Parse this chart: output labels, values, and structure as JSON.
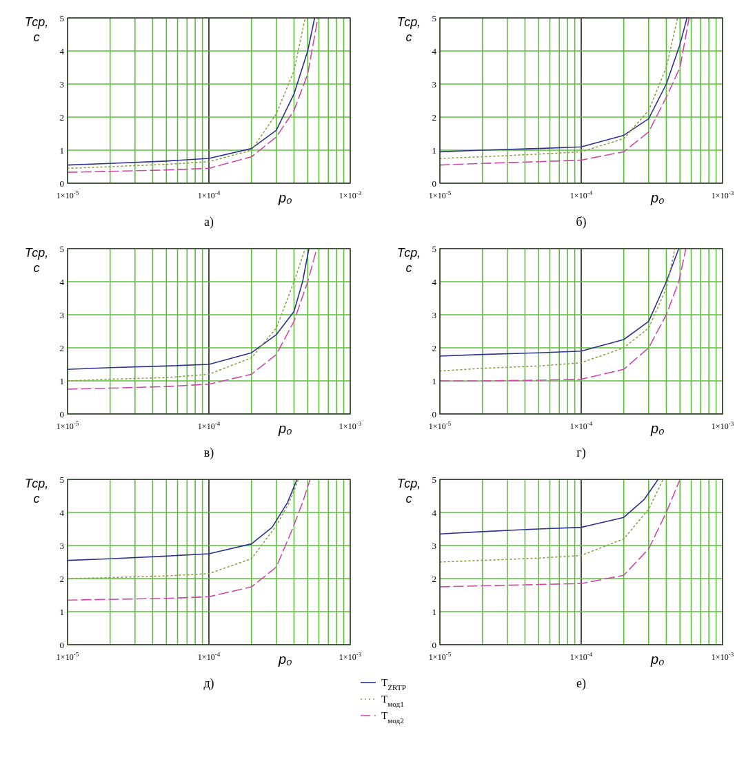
{
  "chart_data": [
    {
      "type": "line",
      "title": "а)",
      "xlabel": "p₀",
      "ylabel": "Тср, с",
      "log": "x",
      "grid": true,
      "ref_lines": [
        {
          "axis": "x",
          "value": 0.0001,
          "color": "#333333"
        }
      ],
      "xlim": [
        1e-05,
        0.001
      ],
      "ylim": [
        0,
        5
      ],
      "yticks": [
        0,
        1,
        2,
        3,
        4,
        5
      ],
      "xticks": [
        {
          "value": 1e-05,
          "label": "1×10$^{-5}$"
        },
        {
          "value": 2e-05,
          "label": null
        },
        {
          "value": 3e-05,
          "label": null
        },
        {
          "value": 4e-05,
          "label": null
        },
        {
          "value": 5e-05,
          "label": null
        },
        {
          "value": 6e-05,
          "label": null
        },
        {
          "value": 7e-05,
          "label": null
        },
        {
          "value": 8e-05,
          "label": null
        },
        {
          "value": 9e-05,
          "label": null
        },
        {
          "value": 0.0001,
          "label": "1×10$^{-4}$"
        },
        {
          "value": 0.0002,
          "label": null
        },
        {
          "value": 0.0003,
          "label": null
        },
        {
          "value": 0.0004,
          "label": null
        },
        {
          "value": 0.0005,
          "label": null
        },
        {
          "value": 0.0006,
          "label": null
        },
        {
          "value": 0.0007,
          "label": null
        },
        {
          "value": 0.0008,
          "label": null
        },
        {
          "value": 0.0009,
          "label": null
        },
        {
          "value": 0.001,
          "label": "1×10$^{-3}$"
        }
      ],
      "series": [
        {
          "color": "#2e3192",
          "line_style": "solid",
          "x": [
            1e-05,
            2e-05,
            5e-05,
            0.0001,
            0.0002,
            0.0003,
            0.0004,
            0.0005,
            0.00056
          ],
          "values": [
            0.55,
            0.6,
            0.67,
            0.75,
            1.05,
            1.6,
            2.7,
            4.0,
            5
          ]
        },
        {
          "color": "#8fa04a",
          "line_style": "dotted",
          "x": [
            1e-05,
            2e-05,
            5e-05,
            0.0001,
            0.0002,
            0.0003,
            0.0004,
            0.00048
          ],
          "values": [
            0.45,
            0.5,
            0.57,
            0.65,
            1.0,
            2.1,
            3.4,
            5
          ]
        },
        {
          "color": "#cc4aa8",
          "line_style": "dashed",
          "x": [
            1e-05,
            2e-05,
            5e-05,
            0.0001,
            0.0002,
            0.0003,
            0.0004,
            0.0005,
            0.00059
          ],
          "values": [
            0.33,
            0.36,
            0.4,
            0.45,
            0.8,
            1.4,
            2.2,
            3.3,
            5
          ]
        }
      ]
    },
    {
      "type": "line",
      "title": "б)",
      "xlabel": "p₀",
      "ylabel": "Тср, с",
      "log": "x",
      "grid": true,
      "ref_lines": [
        {
          "axis": "x",
          "value": 0.0001,
          "color": "#333333"
        }
      ],
      "xlim": [
        1e-05,
        0.001
      ],
      "ylim": [
        0,
        5
      ],
      "yticks": [
        0,
        1,
        2,
        3,
        4,
        5
      ],
      "xticks": [
        {
          "value": 1e-05,
          "label": "1×10$^{-5}$"
        },
        {
          "value": 2e-05,
          "label": null
        },
        {
          "value": 3e-05,
          "label": null
        },
        {
          "value": 4e-05,
          "label": null
        },
        {
          "value": 5e-05,
          "label": null
        },
        {
          "value": 6e-05,
          "label": null
        },
        {
          "value": 7e-05,
          "label": null
        },
        {
          "value": 8e-05,
          "label": null
        },
        {
          "value": 9e-05,
          "label": null
        },
        {
          "value": 0.0001,
          "label": "1×10$^{-4}$"
        },
        {
          "value": 0.0002,
          "label": null
        },
        {
          "value": 0.0003,
          "label": null
        },
        {
          "value": 0.0004,
          "label": null
        },
        {
          "value": 0.0005,
          "label": null
        },
        {
          "value": 0.0006,
          "label": null
        },
        {
          "value": 0.0007,
          "label": null
        },
        {
          "value": 0.0008,
          "label": null
        },
        {
          "value": 0.0009,
          "label": null
        },
        {
          "value": 0.001,
          "label": "1×10$^{-3}$"
        }
      ],
      "series": [
        {
          "color": "#2e3192",
          "line_style": "solid",
          "x": [
            1e-05,
            2e-05,
            5e-05,
            0.0001,
            0.0002,
            0.0003,
            0.0004,
            0.0005,
            0.00056
          ],
          "values": [
            0.95,
            1.0,
            1.05,
            1.1,
            1.45,
            1.95,
            3.0,
            4.2,
            5
          ]
        },
        {
          "color": "#8fa04a",
          "line_style": "dotted",
          "x": [
            1e-05,
            2e-05,
            5e-05,
            0.0001,
            0.0002,
            0.0003,
            0.0004,
            0.00048
          ],
          "values": [
            0.75,
            0.8,
            0.88,
            0.95,
            1.35,
            2.2,
            3.5,
            5
          ]
        },
        {
          "color": "#cc4aa8",
          "line_style": "dashed",
          "x": [
            1e-05,
            2e-05,
            5e-05,
            0.0001,
            0.0002,
            0.0003,
            0.0004,
            0.0005,
            0.00058
          ],
          "values": [
            0.55,
            0.6,
            0.65,
            0.7,
            0.95,
            1.55,
            2.6,
            3.5,
            5
          ]
        }
      ]
    },
    {
      "type": "line",
      "title": "в)",
      "xlabel": "p₀",
      "ylabel": "Тср, с",
      "log": "x",
      "grid": true,
      "ref_lines": [
        {
          "axis": "x",
          "value": 0.0001,
          "color": "#333333"
        }
      ],
      "xlim": [
        1e-05,
        0.001
      ],
      "ylim": [
        0,
        5
      ],
      "yticks": [
        0,
        1,
        2,
        3,
        4,
        5
      ],
      "xticks": [
        {
          "value": 1e-05,
          "label": "1×10$^{-5}$"
        },
        {
          "value": 2e-05,
          "label": null
        },
        {
          "value": 3e-05,
          "label": null
        },
        {
          "value": 4e-05,
          "label": null
        },
        {
          "value": 5e-05,
          "label": null
        },
        {
          "value": 6e-05,
          "label": null
        },
        {
          "value": 7e-05,
          "label": null
        },
        {
          "value": 8e-05,
          "label": null
        },
        {
          "value": 9e-05,
          "label": null
        },
        {
          "value": 0.0001,
          "label": "1×10$^{-4}$"
        },
        {
          "value": 0.0002,
          "label": null
        },
        {
          "value": 0.0003,
          "label": null
        },
        {
          "value": 0.0004,
          "label": null
        },
        {
          "value": 0.0005,
          "label": null
        },
        {
          "value": 0.0006,
          "label": null
        },
        {
          "value": 0.0007,
          "label": null
        },
        {
          "value": 0.0008,
          "label": null
        },
        {
          "value": 0.0009,
          "label": null
        },
        {
          "value": 0.001,
          "label": "1×10$^{-3}$"
        }
      ],
      "series": [
        {
          "color": "#2e3192",
          "line_style": "solid",
          "x": [
            1e-05,
            2e-05,
            5e-05,
            0.0001,
            0.0002,
            0.0003,
            0.0004,
            0.00046,
            0.00051
          ],
          "values": [
            1.35,
            1.4,
            1.45,
            1.5,
            1.85,
            2.4,
            3.1,
            4.0,
            5
          ]
        },
        {
          "color": "#8fa04a",
          "line_style": "dotted",
          "x": [
            1e-05,
            2e-05,
            5e-05,
            0.0001,
            0.0002,
            0.0003,
            0.0004,
            0.00048
          ],
          "values": [
            1.0,
            1.05,
            1.1,
            1.2,
            1.7,
            2.6,
            4.0,
            5
          ]
        },
        {
          "color": "#cc4aa8",
          "line_style": "dashed",
          "x": [
            1e-05,
            2e-05,
            5e-05,
            0.0001,
            0.0002,
            0.0003,
            0.0004,
            0.0005,
            0.00058
          ],
          "values": [
            0.75,
            0.78,
            0.83,
            0.9,
            1.2,
            1.8,
            2.8,
            4.0,
            5
          ]
        }
      ]
    },
    {
      "type": "line",
      "title": "г)",
      "xlabel": "p₀",
      "ylabel": "Тср, с",
      "log": "x",
      "grid": true,
      "ref_lines": [
        {
          "axis": "x",
          "value": 0.0001,
          "color": "#333333"
        }
      ],
      "xlim": [
        1e-05,
        0.001
      ],
      "ylim": [
        0,
        5
      ],
      "yticks": [
        0,
        1,
        2,
        3,
        4,
        5
      ],
      "xticks": [
        {
          "value": 1e-05,
          "label": "1×10$^{-5}$"
        },
        {
          "value": 2e-05,
          "label": null
        },
        {
          "value": 3e-05,
          "label": null
        },
        {
          "value": 4e-05,
          "label": null
        },
        {
          "value": 5e-05,
          "label": null
        },
        {
          "value": 6e-05,
          "label": null
        },
        {
          "value": 7e-05,
          "label": null
        },
        {
          "value": 8e-05,
          "label": null
        },
        {
          "value": 9e-05,
          "label": null
        },
        {
          "value": 0.0001,
          "label": "1×10$^{-4}$"
        },
        {
          "value": 0.0002,
          "label": null
        },
        {
          "value": 0.0003,
          "label": null
        },
        {
          "value": 0.0004,
          "label": null
        },
        {
          "value": 0.0005,
          "label": null
        },
        {
          "value": 0.0006,
          "label": null
        },
        {
          "value": 0.0007,
          "label": null
        },
        {
          "value": 0.0008,
          "label": null
        },
        {
          "value": 0.0009,
          "label": null
        },
        {
          "value": 0.001,
          "label": "1×10$^{-3}$"
        }
      ],
      "series": [
        {
          "color": "#2e3192",
          "line_style": "solid",
          "x": [
            1e-05,
            2e-05,
            5e-05,
            0.0001,
            0.0002,
            0.0003,
            0.0004,
            0.00049
          ],
          "values": [
            1.75,
            1.8,
            1.85,
            1.9,
            2.25,
            2.8,
            4.0,
            5
          ]
        },
        {
          "color": "#8fa04a",
          "line_style": "dotted",
          "x": [
            1e-05,
            2e-05,
            5e-05,
            0.0001,
            0.0002,
            0.0003,
            0.0004,
            0.00046
          ],
          "values": [
            1.3,
            1.38,
            1.45,
            1.55,
            2.0,
            2.6,
            3.8,
            5
          ]
        },
        {
          "color": "#cc4aa8",
          "line_style": "dashed",
          "x": [
            1e-05,
            2e-05,
            5e-05,
            0.0001,
            0.0002,
            0.0003,
            0.0004,
            0.00049,
            0.00055
          ],
          "values": [
            1.0,
            1.0,
            1.02,
            1.05,
            1.35,
            2.0,
            3.0,
            4.0,
            5
          ]
        }
      ]
    },
    {
      "type": "line",
      "title": "д)",
      "xlabel": "p₀",
      "ylabel": "Тср, с",
      "log": "x",
      "grid": true,
      "ref_lines": [
        {
          "axis": "x",
          "value": 0.0001,
          "color": "#333333"
        }
      ],
      "legend": "bottom right",
      "xlim": [
        1e-05,
        0.001
      ],
      "ylim": [
        0,
        5
      ],
      "yticks": [
        0,
        1,
        2,
        3,
        4,
        5
      ],
      "xticks": [
        {
          "value": 1e-05,
          "label": "1×10$^{-5}$"
        },
        {
          "value": 2e-05,
          "label": null
        },
        {
          "value": 3e-05,
          "label": null
        },
        {
          "value": 4e-05,
          "label": null
        },
        {
          "value": 5e-05,
          "label": null
        },
        {
          "value": 6e-05,
          "label": null
        },
        {
          "value": 7e-05,
          "label": null
        },
        {
          "value": 8e-05,
          "label": null
        },
        {
          "value": 9e-05,
          "label": null
        },
        {
          "value": 0.0001,
          "label": "1×10$^{-4}$"
        },
        {
          "value": 0.0002,
          "label": null
        },
        {
          "value": 0.0003,
          "label": null
        },
        {
          "value": 0.0004,
          "label": null
        },
        {
          "value": 0.0005,
          "label": null
        },
        {
          "value": 0.0006,
          "label": null
        },
        {
          "value": 0.0007,
          "label": null
        },
        {
          "value": 0.0008,
          "label": null
        },
        {
          "value": 0.0009,
          "label": null
        },
        {
          "value": 0.001,
          "label": "1×10$^{-3}$"
        }
      ],
      "series": [
        {
          "name": "T$_{ZRTP}$",
          "color": "#2e3192",
          "line_style": "solid",
          "x": [
            1e-05,
            2e-05,
            5e-05,
            0.0001,
            0.0002,
            0.00028,
            0.00036,
            0.00042
          ],
          "values": [
            2.55,
            2.6,
            2.68,
            2.75,
            3.05,
            3.55,
            4.3,
            5
          ]
        },
        {
          "name": "T$_{мод1}$",
          "color": "#8fa04a",
          "line_style": "dotted",
          "x": [
            1e-05,
            2e-05,
            5e-05,
            0.0001,
            0.0002,
            0.0003,
            0.00037,
            0.00043
          ],
          "values": [
            2.0,
            2.03,
            2.08,
            2.15,
            2.6,
            3.6,
            4.3,
            5
          ]
        },
        {
          "name": "T$_{мод2}$",
          "color": "#cc4aa8",
          "line_style": "dashed",
          "x": [
            1e-05,
            2e-05,
            5e-05,
            0.0001,
            0.0002,
            0.0003,
            0.00039,
            0.00046,
            0.00052
          ],
          "values": [
            1.35,
            1.37,
            1.4,
            1.45,
            1.75,
            2.35,
            3.5,
            4.3,
            5
          ]
        }
      ]
    },
    {
      "type": "line",
      "title": "е)",
      "xlabel": "p₀",
      "ylabel": "Тср, с",
      "log": "x",
      "grid": true,
      "ref_lines": [
        {
          "axis": "x",
          "value": 0.0001,
          "color": "#333333"
        }
      ],
      "xlim": [
        1e-05,
        0.001
      ],
      "ylim": [
        0,
        5
      ],
      "yticks": [
        0,
        1,
        2,
        3,
        4,
        5
      ],
      "xticks": [
        {
          "value": 1e-05,
          "label": "1×10$^{-5}$"
        },
        {
          "value": 2e-05,
          "label": null
        },
        {
          "value": 3e-05,
          "label": null
        },
        {
          "value": 4e-05,
          "label": null
        },
        {
          "value": 5e-05,
          "label": null
        },
        {
          "value": 6e-05,
          "label": null
        },
        {
          "value": 7e-05,
          "label": null
        },
        {
          "value": 8e-05,
          "label": null
        },
        {
          "value": 9e-05,
          "label": null
        },
        {
          "value": 0.0001,
          "label": "1×10$^{-4}$"
        },
        {
          "value": 0.0002,
          "label": null
        },
        {
          "value": 0.0003,
          "label": null
        },
        {
          "value": 0.0004,
          "label": null
        },
        {
          "value": 0.0005,
          "label": null
        },
        {
          "value": 0.0006,
          "label": null
        },
        {
          "value": 0.0007,
          "label": null
        },
        {
          "value": 0.0008,
          "label": null
        },
        {
          "value": 0.0009,
          "label": null
        },
        {
          "value": 0.001,
          "label": "1×10$^{-3}$"
        }
      ],
      "series": [
        {
          "color": "#2e3192",
          "line_style": "solid",
          "x": [
            1e-05,
            2e-05,
            5e-05,
            0.0001,
            0.0002,
            0.00028,
            0.00035
          ],
          "values": [
            3.35,
            3.42,
            3.5,
            3.55,
            3.85,
            4.4,
            5
          ]
        },
        {
          "color": "#8fa04a",
          "line_style": "dotted",
          "x": [
            1e-05,
            2e-05,
            5e-05,
            0.0001,
            0.0002,
            0.0003,
            0.00038
          ],
          "values": [
            2.5,
            2.55,
            2.62,
            2.7,
            3.2,
            4.1,
            5
          ]
        },
        {
          "color": "#cc4aa8",
          "line_style": "dashed",
          "x": [
            1e-05,
            2e-05,
            5e-05,
            0.0001,
            0.0002,
            0.0003,
            0.0004,
            0.0005
          ],
          "values": [
            1.75,
            1.78,
            1.82,
            1.85,
            2.1,
            2.9,
            4.0,
            5
          ]
        }
      ]
    }
  ]
}
